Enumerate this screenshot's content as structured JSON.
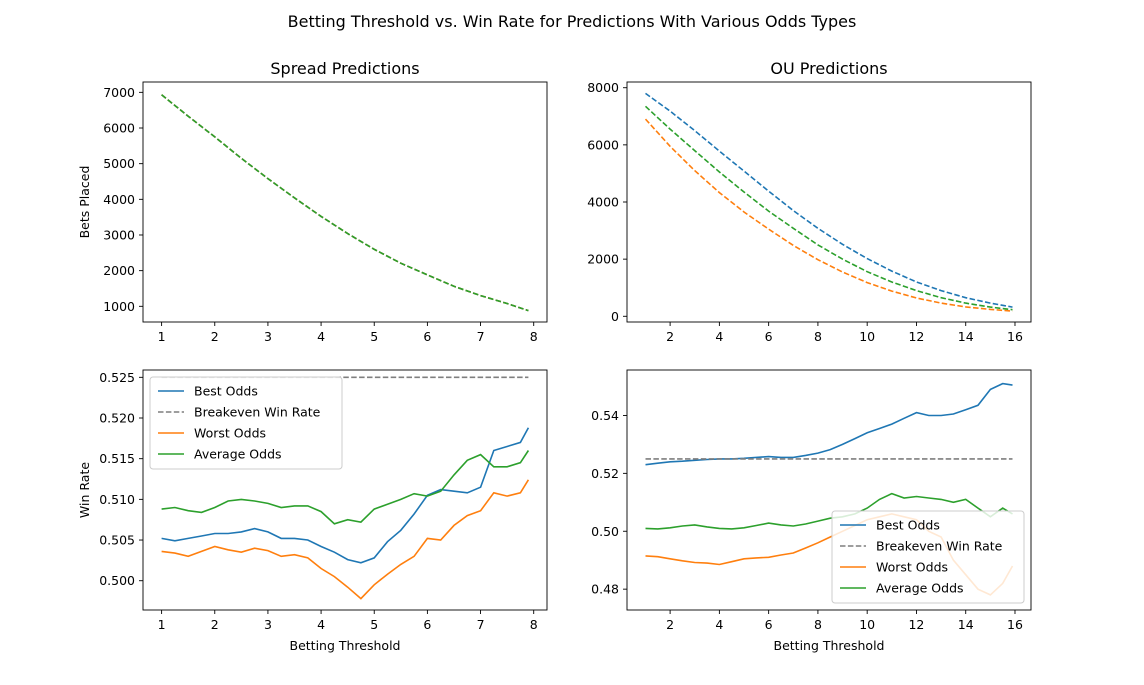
{
  "suptitle": "Betting Threshold vs. Win Rate for Predictions With Various Odds Types",
  "colors": {
    "best": "#1f77b4",
    "worst": "#ff7f0e",
    "average": "#2ca02c",
    "breakeven": "#7f7f7f"
  },
  "chart_data": [
    {
      "id": "spread-bets",
      "type": "line",
      "title": "Spread Predictions",
      "xlabel": "",
      "ylabel": "Bets Placed",
      "xlim": [
        0.65,
        8.25
      ],
      "ylim": [
        560,
        7290
      ],
      "xticks": [
        1,
        2,
        3,
        4,
        5,
        6,
        7,
        8
      ],
      "yticks": [
        1000,
        2000,
        3000,
        4000,
        5000,
        6000,
        7000
      ],
      "legend": null,
      "series": [
        {
          "key": "best",
          "dashed": true,
          "x": [
            1,
            1.5,
            2,
            2.5,
            3,
            3.5,
            4,
            4.5,
            5,
            5.5,
            6,
            6.5,
            7,
            7.5,
            7.9
          ],
          "y": [
            6930,
            6330,
            5750,
            5150,
            4580,
            4040,
            3520,
            3040,
            2600,
            2210,
            1880,
            1560,
            1300,
            1080,
            880
          ]
        },
        {
          "key": "worst",
          "dashed": true,
          "x": [
            1,
            1.5,
            2,
            2.5,
            3,
            3.5,
            4,
            4.5,
            5,
            5.5,
            6,
            6.5,
            7,
            7.5,
            7.9
          ],
          "y": [
            6930,
            6330,
            5750,
            5150,
            4580,
            4040,
            3520,
            3040,
            2600,
            2210,
            1880,
            1560,
            1300,
            1080,
            880
          ]
        },
        {
          "key": "average",
          "dashed": true,
          "x": [
            1,
            1.5,
            2,
            2.5,
            3,
            3.5,
            4,
            4.5,
            5,
            5.5,
            6,
            6.5,
            7,
            7.5,
            7.9
          ],
          "y": [
            6930,
            6330,
            5750,
            5150,
            4580,
            4040,
            3520,
            3040,
            2600,
            2210,
            1880,
            1560,
            1300,
            1080,
            880
          ]
        }
      ]
    },
    {
      "id": "ou-bets",
      "type": "line",
      "title": "OU Predictions",
      "xlabel": "",
      "ylabel": "",
      "xlim": [
        0.25,
        16.65
      ],
      "ylim": [
        -200,
        8200
      ],
      "xticks": [
        2,
        4,
        6,
        8,
        10,
        12,
        14,
        16
      ],
      "yticks": [
        0,
        2000,
        4000,
        6000,
        8000
      ],
      "legend": null,
      "series": [
        {
          "key": "best",
          "dashed": true,
          "x": [
            1,
            2,
            3,
            4,
            5,
            6,
            7,
            8,
            9,
            10,
            11,
            12,
            13,
            14,
            15,
            15.9
          ],
          "y": [
            7800,
            7180,
            6500,
            5780,
            5080,
            4380,
            3700,
            3080,
            2520,
            2020,
            1580,
            1200,
            900,
            650,
            460,
            320
          ]
        },
        {
          "key": "worst",
          "dashed": true,
          "x": [
            1,
            2,
            3,
            4,
            5,
            6,
            7,
            8,
            9,
            10,
            11,
            12,
            13,
            14,
            15,
            15.9
          ],
          "y": [
            6900,
            5950,
            5100,
            4330,
            3650,
            3050,
            2480,
            1980,
            1550,
            1180,
            880,
            640,
            460,
            330,
            240,
            180
          ]
        },
        {
          "key": "average",
          "dashed": true,
          "x": [
            1,
            2,
            3,
            4,
            5,
            6,
            7,
            8,
            9,
            10,
            11,
            12,
            13,
            14,
            15,
            15.9
          ],
          "y": [
            7350,
            6550,
            5800,
            5050,
            4350,
            3680,
            3080,
            2500,
            2000,
            1560,
            1200,
            900,
            650,
            460,
            320,
            230
          ]
        }
      ]
    },
    {
      "id": "spread-winrate",
      "type": "line",
      "title": "",
      "xlabel": "Betting Threshold",
      "ylabel": "Win Rate",
      "xlim": [
        0.65,
        8.25
      ],
      "ylim": [
        0.4964,
        0.5259
      ],
      "xticks": [
        1,
        2,
        3,
        4,
        5,
        6,
        7,
        8
      ],
      "yticks": [
        0.5,
        0.505,
        0.51,
        0.515,
        0.52,
        0.525
      ],
      "yformat": 3,
      "legend": "upper-left",
      "series": [
        {
          "key": "best",
          "name": "Best Odds",
          "dashed": false,
          "x": [
            1,
            1.25,
            1.5,
            1.75,
            2,
            2.25,
            2.5,
            2.75,
            3,
            3.25,
            3.5,
            3.75,
            4,
            4.25,
            4.5,
            4.75,
            5,
            5.25,
            5.5,
            5.75,
            6,
            6.25,
            6.5,
            6.75,
            7,
            7.25,
            7.5,
            7.75,
            7.9
          ],
          "y": [
            0.5052,
            0.5049,
            0.5052,
            0.5055,
            0.5058,
            0.5058,
            0.506,
            0.5064,
            0.506,
            0.5052,
            0.5052,
            0.505,
            0.5042,
            0.5035,
            0.5026,
            0.5022,
            0.5028,
            0.5048,
            0.5062,
            0.5082,
            0.5105,
            0.5112,
            0.511,
            0.5108,
            0.5115,
            0.516,
            0.5165,
            0.517,
            0.5188
          ]
        },
        {
          "key": "breakeven",
          "name": "Breakeven Win Rate",
          "dashed": true,
          "x": [
            1,
            7.9
          ],
          "y": [
            0.525,
            0.525
          ]
        },
        {
          "key": "worst",
          "name": "Worst Odds",
          "dashed": false,
          "x": [
            1,
            1.25,
            1.5,
            1.75,
            2,
            2.25,
            2.5,
            2.75,
            3,
            3.25,
            3.5,
            3.75,
            4,
            4.25,
            4.5,
            4.75,
            5,
            5.25,
            5.5,
            5.75,
            6,
            6.25,
            6.5,
            6.75,
            7,
            7.25,
            7.5,
            7.75,
            7.9
          ],
          "y": [
            0.5036,
            0.5034,
            0.503,
            0.5036,
            0.5042,
            0.5038,
            0.5035,
            0.504,
            0.5037,
            0.503,
            0.5032,
            0.5028,
            0.5015,
            0.5005,
            0.4992,
            0.4978,
            0.4995,
            0.5008,
            0.502,
            0.503,
            0.5052,
            0.505,
            0.5068,
            0.508,
            0.5086,
            0.5108,
            0.5104,
            0.5108,
            0.5124
          ]
        },
        {
          "key": "average",
          "name": "Average Odds",
          "dashed": false,
          "x": [
            1,
            1.25,
            1.5,
            1.75,
            2,
            2.25,
            2.5,
            2.75,
            3,
            3.25,
            3.5,
            3.75,
            4,
            4.25,
            4.5,
            4.75,
            5,
            5.25,
            5.5,
            5.75,
            6,
            6.25,
            6.5,
            6.75,
            7,
            7.25,
            7.5,
            7.75,
            7.9
          ],
          "y": [
            0.5088,
            0.509,
            0.5086,
            0.5084,
            0.509,
            0.5098,
            0.51,
            0.5098,
            0.5095,
            0.509,
            0.5092,
            0.5092,
            0.5085,
            0.507,
            0.5075,
            0.5072,
            0.5088,
            0.5094,
            0.51,
            0.5107,
            0.5104,
            0.511,
            0.513,
            0.5148,
            0.5155,
            0.514,
            0.514,
            0.5145,
            0.516
          ]
        }
      ]
    },
    {
      "id": "ou-winrate",
      "type": "line",
      "title": "",
      "xlabel": "Betting Threshold",
      "ylabel": "",
      "xlim": [
        0.25,
        16.65
      ],
      "ylim": [
        0.4728,
        0.5557
      ],
      "xticks": [
        2,
        4,
        6,
        8,
        10,
        12,
        14,
        16
      ],
      "yticks": [
        0.48,
        0.5,
        0.52,
        0.54
      ],
      "yformat": 2,
      "legend": "lower-right",
      "series": [
        {
          "key": "best",
          "name": "Best Odds",
          "dashed": false,
          "x": [
            1,
            1.5,
            2,
            2.5,
            3,
            3.5,
            4,
            4.5,
            5,
            5.5,
            6,
            6.5,
            7,
            7.5,
            8,
            8.5,
            9,
            9.5,
            10,
            10.5,
            11,
            11.5,
            12,
            12.5,
            13,
            13.5,
            14,
            14.5,
            15,
            15.5,
            15.9
          ],
          "y": [
            0.523,
            0.5235,
            0.524,
            0.5242,
            0.5245,
            0.5248,
            0.525,
            0.525,
            0.5252,
            0.5255,
            0.5258,
            0.5255,
            0.5255,
            0.5262,
            0.527,
            0.5282,
            0.53,
            0.532,
            0.534,
            0.5355,
            0.537,
            0.539,
            0.541,
            0.54,
            0.54,
            0.5405,
            0.542,
            0.5435,
            0.549,
            0.551,
            0.5505
          ]
        },
        {
          "key": "breakeven",
          "name": "Breakeven Win Rate",
          "dashed": true,
          "x": [
            1,
            15.9
          ],
          "y": [
            0.525,
            0.525
          ]
        },
        {
          "key": "worst",
          "name": "Worst Odds",
          "dashed": false,
          "x": [
            1,
            1.5,
            2,
            2.5,
            3,
            3.5,
            4,
            4.5,
            5,
            5.5,
            6,
            6.5,
            7,
            7.5,
            8,
            8.5,
            9,
            9.5,
            10,
            10.5,
            11,
            11.5,
            12,
            12.5,
            13,
            13.5,
            14,
            14.5,
            15,
            15.5,
            15.9
          ],
          "y": [
            0.4915,
            0.4912,
            0.4905,
            0.4898,
            0.4892,
            0.489,
            0.4885,
            0.4895,
            0.4905,
            0.4908,
            0.491,
            0.4918,
            0.4925,
            0.4942,
            0.496,
            0.498,
            0.5,
            0.502,
            0.504,
            0.505,
            0.506,
            0.505,
            0.504,
            0.5,
            0.498,
            0.49,
            0.485,
            0.48,
            0.478,
            0.482,
            0.488
          ]
        },
        {
          "key": "average",
          "name": "Average Odds",
          "dashed": false,
          "x": [
            1,
            1.5,
            2,
            2.5,
            3,
            3.5,
            4,
            4.5,
            5,
            5.5,
            6,
            6.5,
            7,
            7.5,
            8,
            8.5,
            9,
            9.5,
            10,
            10.5,
            11,
            11.5,
            12,
            12.5,
            13,
            13.5,
            14,
            14.5,
            15,
            15.5,
            15.9
          ],
          "y": [
            0.501,
            0.5008,
            0.5012,
            0.5018,
            0.5022,
            0.5015,
            0.501,
            0.5008,
            0.5012,
            0.502,
            0.5028,
            0.5022,
            0.5018,
            0.5025,
            0.5035,
            0.5045,
            0.505,
            0.506,
            0.508,
            0.511,
            0.513,
            0.5115,
            0.512,
            0.5115,
            0.511,
            0.51,
            0.511,
            0.508,
            0.505,
            0.508,
            0.506
          ]
        }
      ]
    }
  ]
}
